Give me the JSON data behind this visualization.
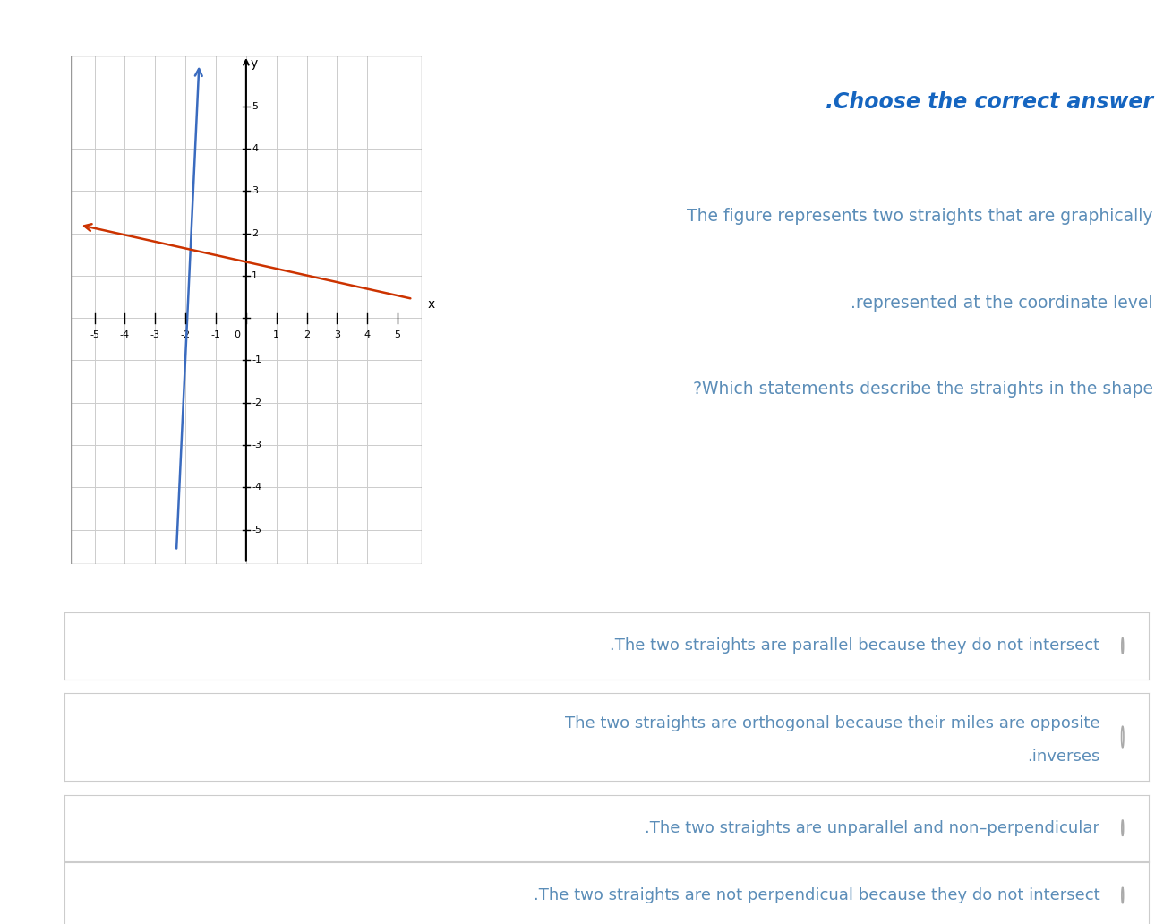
{
  "title": ".Choose the correct answer",
  "title_color": "#1565C0",
  "description_lines": [
    "The figure represents two straights that are graphically",
    ".represented at the coordinate level",
    "?Which statements describe the straights in the shape"
  ],
  "description_color": "#5b8db8",
  "blue_line": {
    "x1": -2.3,
    "y1": -5.5,
    "x2": -1.55,
    "y2": 6.0,
    "color": "#3a6bbf"
  },
  "red_line": {
    "x1": -5.5,
    "y1": 2.2,
    "x2": 5.5,
    "y2": 0.45,
    "color": "#cc3300"
  },
  "xlim": [
    -5.8,
    5.8
  ],
  "ylim": [
    -5.8,
    6.2
  ],
  "grid_color": "#cccccc",
  "axis_color": "#000000",
  "options": [
    ".The two straights are parallel because they do not intersect",
    "The two straights are orthogonal because their miles are opposite\n.inverses",
    ".The two straights are unparallel and non–perpendicular",
    ".The two straights are not perpendicual because they do not intersect"
  ],
  "option_text_color": "#5b8db8",
  "option_bg_color": "#ffffff",
  "option_border_color": "#cccccc",
  "radio_color": "#aaaaaa",
  "bg_color": "#ffffff"
}
